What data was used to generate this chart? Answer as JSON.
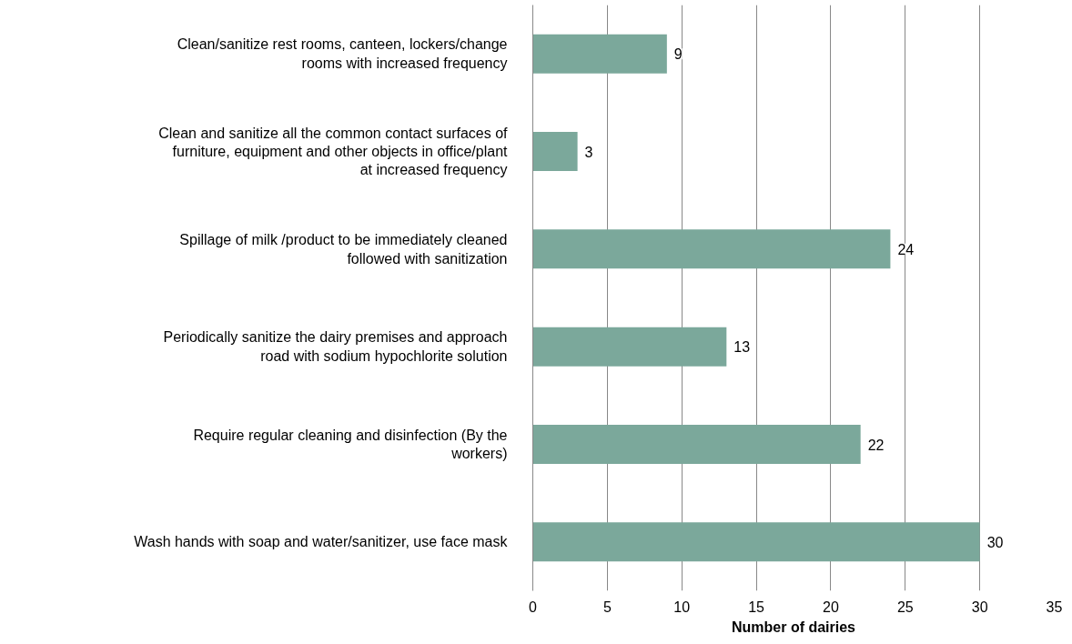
{
  "chart_data": {
    "type": "bar",
    "orientation": "horizontal",
    "xlabel": "Number of dairies",
    "categories": [
      "Clean/sanitize rest rooms, canteen, lockers/change rooms with increased frequency",
      "Clean and sanitize all the common contact surfaces of furniture, equipment and other objects in office/plant at increased frequency",
      "Spillage of milk /product to be immediately cleaned followed with sanitization",
      "Periodically sanitize the dairy premises and approach road with sodium hypochlorite solution",
      "Require regular cleaning and disinfection (By the workers)",
      "Wash hands with soap and water/sanitizer, use face mask"
    ],
    "values": [
      9,
      3,
      24,
      13,
      22,
      30
    ],
    "color": "#7ba89b",
    "xlim": [
      0,
      35
    ],
    "xticks": [
      0,
      5,
      10,
      15,
      20,
      25,
      30,
      35
    ],
    "grid": "x",
    "data_labels": true
  }
}
